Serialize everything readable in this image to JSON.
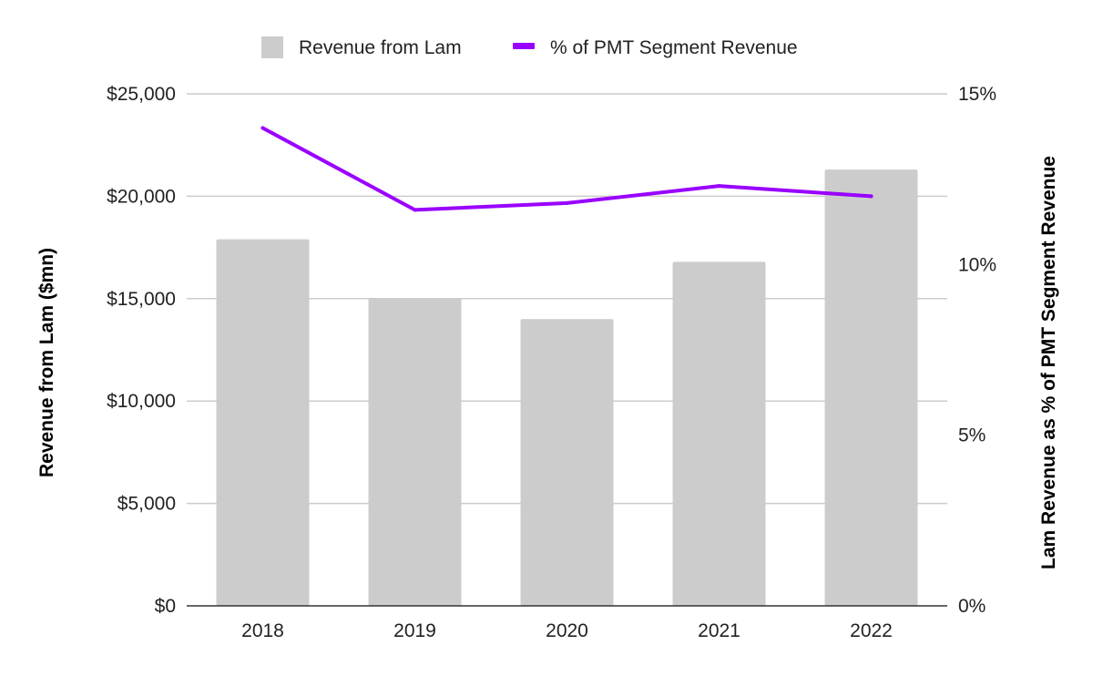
{
  "chart_data": {
    "type": "bar",
    "categories": [
      "2018",
      "2019",
      "2020",
      "2021",
      "2022"
    ],
    "series": [
      {
        "name": "Revenue from Lam",
        "type": "bar",
        "axis": "left",
        "color": "#cccccc",
        "values": [
          17900,
          15000,
          14000,
          16800,
          21300
        ]
      },
      {
        "name": "% of PMT Segment Revenue",
        "type": "line",
        "axis": "right",
        "color": "#9900ff",
        "values": [
          14.0,
          11.6,
          11.8,
          12.3,
          12.0
        ]
      }
    ],
    "ylabel": "Revenue from Lam ($mn)",
    "y2label": "Lam Revenue as % of PMT Segment Revenue",
    "ylim": [
      0,
      25000
    ],
    "y2lim": [
      0,
      15
    ],
    "yticks": [
      "$0",
      "$5,000",
      "$10,000",
      "$15,000",
      "$20,000",
      "$25,000"
    ],
    "y2ticks": [
      "0%",
      "5%",
      "10%",
      "15%"
    ],
    "grid": true,
    "legend_position": "top"
  }
}
